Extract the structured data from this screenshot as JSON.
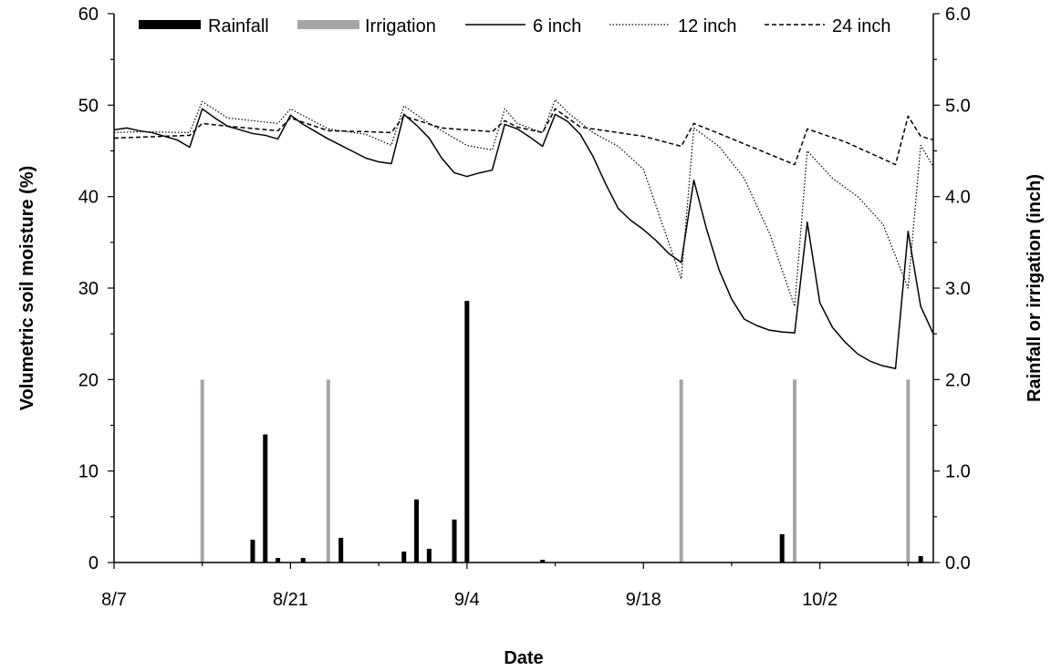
{
  "chart_data": {
    "type": "combo-bar-line",
    "title": "",
    "xlabel": "Date",
    "ylabel_left": "Volumetric soil moisture (%)",
    "ylabel_right": "Rainfall or irrigation (inch)",
    "x_range": [
      "2009-08-07",
      "2009-10-11"
    ],
    "x_ticks": [
      "8/7",
      "8/21",
      "9/4",
      "9/18",
      "10/2"
    ],
    "ylim_left": [
      0,
      60
    ],
    "y_ticks_left": [
      "0",
      "10",
      "20",
      "30",
      "40",
      "50",
      "60"
    ],
    "ylim_right": [
      0,
      6
    ],
    "y_ticks_right": [
      "0.0",
      "1.0",
      "2.0",
      "3.0",
      "4.0",
      "5.0",
      "6.0"
    ],
    "grid": false,
    "legend_position": "top",
    "bar_series": [
      {
        "name": "Rainfall",
        "axis": "right",
        "color": "#000000",
        "x": [
          "2009-08-18",
          "2009-08-19",
          "2009-08-20",
          "2009-08-22",
          "2009-08-25",
          "2009-08-30",
          "2009-08-31",
          "2009-09-01",
          "2009-09-03",
          "2009-09-04",
          "2009-09-10",
          "2009-09-29",
          "2009-10-10"
        ],
        "values": [
          0.25,
          1.4,
          0.05,
          0.05,
          0.27,
          0.12,
          0.69,
          0.15,
          0.47,
          2.86,
          0.03,
          0.31,
          0.07
        ]
      },
      {
        "name": "Irrigation",
        "axis": "right",
        "color": "#a6a6a6",
        "x": [
          "2009-08-14",
          "2009-08-24",
          "2009-09-21",
          "2009-09-30",
          "2009-10-09"
        ],
        "values": [
          2.0,
          2.0,
          2.0,
          2.0,
          2.0
        ]
      }
    ],
    "line_series": [
      {
        "name": "6 inch",
        "axis": "left",
        "style": "solid",
        "color": "#000000",
        "points": [
          [
            "2009-08-07",
            47.3
          ],
          [
            "2009-08-08",
            47.5
          ],
          [
            "2009-08-09",
            47.2
          ],
          [
            "2009-08-10",
            47.0
          ],
          [
            "2009-08-11",
            46.6
          ],
          [
            "2009-08-12",
            46.2
          ],
          [
            "2009-08-13",
            45.4
          ],
          [
            "2009-08-14",
            49.6
          ],
          [
            "2009-08-15",
            48.6
          ],
          [
            "2009-08-16",
            47.7
          ],
          [
            "2009-08-17",
            47.3
          ],
          [
            "2009-08-18",
            46.9
          ],
          [
            "2009-08-19",
            46.7
          ],
          [
            "2009-08-20",
            46.3
          ],
          [
            "2009-08-21",
            48.9
          ],
          [
            "2009-08-22",
            47.9
          ],
          [
            "2009-08-23",
            47.1
          ],
          [
            "2009-08-24",
            46.3
          ],
          [
            "2009-08-25",
            45.6
          ],
          [
            "2009-08-26",
            44.9
          ],
          [
            "2009-08-27",
            44.2
          ],
          [
            "2009-08-28",
            43.8
          ],
          [
            "2009-08-29",
            43.6
          ],
          [
            "2009-08-30",
            49.0
          ],
          [
            "2009-08-31",
            47.8
          ],
          [
            "2009-09-01",
            46.4
          ],
          [
            "2009-09-02",
            44.2
          ],
          [
            "2009-09-03",
            42.6
          ],
          [
            "2009-09-04",
            42.2
          ],
          [
            "2009-09-05",
            42.6
          ],
          [
            "2009-09-06",
            42.9
          ],
          [
            "2009-09-07",
            47.9
          ],
          [
            "2009-09-08",
            47.4
          ],
          [
            "2009-09-09",
            46.5
          ],
          [
            "2009-09-10",
            45.5
          ],
          [
            "2009-09-11",
            49.0
          ],
          [
            "2009-09-12",
            48.2
          ],
          [
            "2009-09-13",
            46.8
          ],
          [
            "2009-09-14",
            44.4
          ],
          [
            "2009-09-15",
            41.4
          ],
          [
            "2009-09-16",
            38.7
          ],
          [
            "2009-09-17",
            37.4
          ],
          [
            "2009-09-18",
            36.4
          ],
          [
            "2009-09-19",
            35.2
          ],
          [
            "2009-09-20",
            33.8
          ],
          [
            "2009-09-21",
            32.8
          ],
          [
            "2009-09-22",
            41.8
          ],
          [
            "2009-09-23",
            36.5
          ],
          [
            "2009-09-24",
            32.0
          ],
          [
            "2009-09-25",
            28.8
          ],
          [
            "2009-09-26",
            26.6
          ],
          [
            "2009-09-27",
            25.9
          ],
          [
            "2009-09-28",
            25.4
          ],
          [
            "2009-09-29",
            25.2
          ],
          [
            "2009-09-30",
            25.1
          ],
          [
            "2009-10-01",
            37.2
          ],
          [
            "2009-10-02",
            28.4
          ],
          [
            "2009-10-03",
            25.7
          ],
          [
            "2009-10-04",
            24.1
          ],
          [
            "2009-10-05",
            22.8
          ],
          [
            "2009-10-06",
            22.0
          ],
          [
            "2009-10-07",
            21.5
          ],
          [
            "2009-10-08",
            21.2
          ],
          [
            "2009-10-09",
            36.2
          ],
          [
            "2009-10-10",
            28.0
          ],
          [
            "2009-10-11",
            25.0
          ]
        ]
      },
      {
        "name": "12 inch",
        "axis": "left",
        "style": "dotted",
        "color": "#000000",
        "points": [
          [
            "2009-08-07",
            47.0
          ],
          [
            "2009-08-09",
            47.1
          ],
          [
            "2009-08-13",
            47.0
          ],
          [
            "2009-08-14",
            50.4
          ],
          [
            "2009-08-16",
            48.6
          ],
          [
            "2009-08-20",
            48.0
          ],
          [
            "2009-08-21",
            49.6
          ],
          [
            "2009-08-24",
            47.4
          ],
          [
            "2009-08-27",
            46.8
          ],
          [
            "2009-08-29",
            45.6
          ],
          [
            "2009-08-30",
            49.9
          ],
          [
            "2009-09-01",
            48.0
          ],
          [
            "2009-09-04",
            45.6
          ],
          [
            "2009-09-06",
            45.1
          ],
          [
            "2009-09-07",
            49.6
          ],
          [
            "2009-09-08",
            48.0
          ],
          [
            "2009-09-10",
            47.0
          ],
          [
            "2009-09-11",
            50.6
          ],
          [
            "2009-09-12",
            49.2
          ],
          [
            "2009-09-14",
            47.0
          ],
          [
            "2009-09-16",
            45.5
          ],
          [
            "2009-09-18",
            43.0
          ],
          [
            "2009-09-19",
            39.0
          ],
          [
            "2009-09-20",
            35.0
          ],
          [
            "2009-09-21",
            31.0
          ],
          [
            "2009-09-22",
            47.5
          ],
          [
            "2009-09-24",
            45.5
          ],
          [
            "2009-09-26",
            42.0
          ],
          [
            "2009-09-28",
            36.0
          ],
          [
            "2009-09-29",
            32.0
          ],
          [
            "2009-09-30",
            28.0
          ],
          [
            "2009-10-01",
            45.0
          ],
          [
            "2009-10-03",
            42.0
          ],
          [
            "2009-10-05",
            40.0
          ],
          [
            "2009-10-07",
            37.0
          ],
          [
            "2009-10-09",
            30.0
          ],
          [
            "2009-10-10",
            45.6
          ],
          [
            "2009-10-11",
            43.3
          ]
        ]
      },
      {
        "name": "24 inch",
        "axis": "left",
        "style": "dashed",
        "color": "#000000",
        "points": [
          [
            "2009-08-07",
            46.4
          ],
          [
            "2009-08-13",
            46.7
          ],
          [
            "2009-08-14",
            48.0
          ],
          [
            "2009-08-16",
            47.7
          ],
          [
            "2009-08-20",
            47.2
          ],
          [
            "2009-08-21",
            48.6
          ],
          [
            "2009-08-24",
            47.2
          ],
          [
            "2009-08-27",
            47.1
          ],
          [
            "2009-08-29",
            47.0
          ],
          [
            "2009-08-30",
            48.8
          ],
          [
            "2009-09-02",
            47.5
          ],
          [
            "2009-09-06",
            47.1
          ],
          [
            "2009-09-07",
            48.3
          ],
          [
            "2009-09-08",
            47.6
          ],
          [
            "2009-09-10",
            47.0
          ],
          [
            "2009-09-11",
            49.6
          ],
          [
            "2009-09-13",
            47.6
          ],
          [
            "2009-09-18",
            46.6
          ],
          [
            "2009-09-21",
            45.5
          ],
          [
            "2009-09-22",
            48.0
          ],
          [
            "2009-09-24",
            46.9
          ],
          [
            "2009-09-30",
            43.5
          ],
          [
            "2009-10-01",
            47.4
          ],
          [
            "2009-10-04",
            46.0
          ],
          [
            "2009-10-08",
            43.5
          ],
          [
            "2009-10-09",
            48.8
          ],
          [
            "2009-10-10",
            46.6
          ],
          [
            "2009-10-11",
            46.2
          ]
        ]
      }
    ]
  }
}
